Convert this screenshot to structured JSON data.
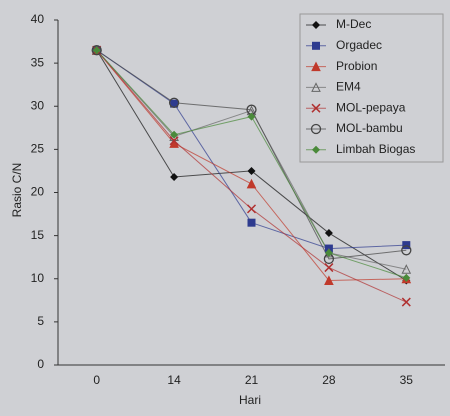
{
  "chart_data": {
    "type": "line",
    "x_label": "Hari",
    "y_label": "Rasio C/N",
    "categories": [
      "0",
      "14",
      "21",
      "28",
      "35"
    ],
    "ylim": [
      0,
      40
    ],
    "yticks": [
      0,
      5,
      10,
      15,
      20,
      25,
      30,
      35,
      40
    ],
    "legend": "top-right",
    "series": [
      {
        "name": "M-Dec",
        "color": "#111111",
        "marker": "diamond",
        "values": [
          36.5,
          21.8,
          22.5,
          15.3,
          9.8
        ]
      },
      {
        "name": "Orgadec",
        "color": "#2e3b8f",
        "marker": "square",
        "values": [
          36.5,
          30.3,
          16.5,
          13.5,
          13.9
        ]
      },
      {
        "name": "Probion",
        "color": "#c0392b",
        "marker": "triangle",
        "values": [
          36.5,
          25.7,
          21.0,
          9.8,
          10.0
        ]
      },
      {
        "name": "EM4",
        "color": "#666666",
        "marker": "triangle-open",
        "values": [
          36.5,
          26.5,
          29.5,
          13.0,
          11.1
        ]
      },
      {
        "name": "MOL-pepaya",
        "color": "#b03030",
        "marker": "x",
        "values": [
          36.5,
          26.0,
          18.1,
          11.3,
          7.3
        ]
      },
      {
        "name": "MOL-bambu",
        "color": "#444444",
        "marker": "circle-open",
        "values": [
          36.5,
          30.4,
          29.6,
          12.3,
          13.3
        ]
      },
      {
        "name": "Limbah Biogas",
        "color": "#4a8a3a",
        "marker": "diamond",
        "values": [
          36.5,
          26.7,
          28.8,
          13.0,
          10.1
        ]
      }
    ]
  }
}
